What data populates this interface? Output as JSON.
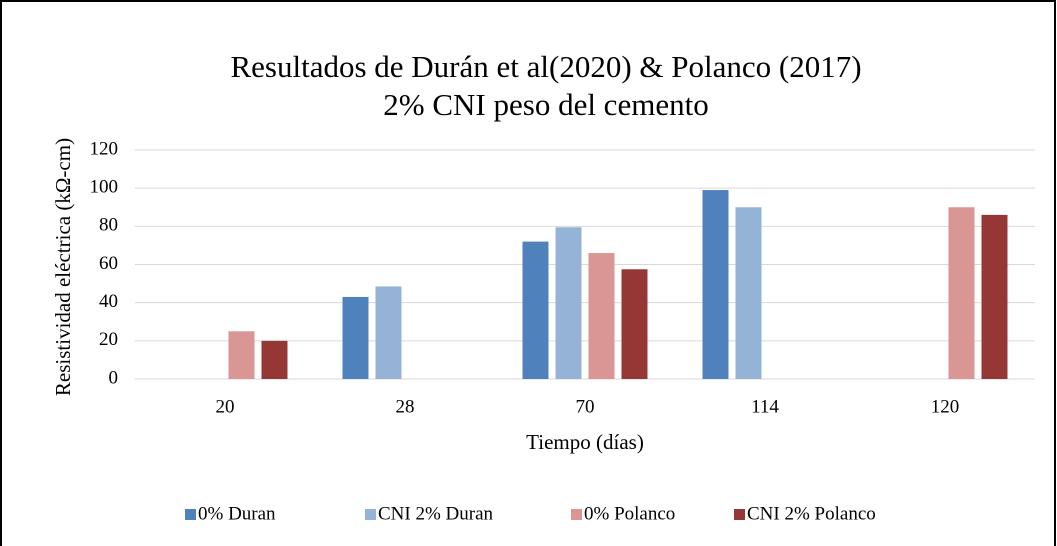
{
  "chart_data": {
    "type": "bar",
    "title": "Resultados de Durán et al(2020) & Polanco (2017)",
    "subtitle": "2% CNI peso del cemento",
    "x_label": "Tiempo (días)",
    "y_label": "Resistividad eléctrica  (kΩ-cm)",
    "categories": [
      "20",
      "28",
      "70",
      "114",
      "120"
    ],
    "series": [
      {
        "name": "0% Duran",
        "color": "#4f81bd",
        "values": [
          null,
          43,
          72,
          99,
          null
        ]
      },
      {
        "name": "CNI 2% Duran",
        "color": "#95b3d7",
        "values": [
          null,
          48.5,
          79.5,
          90,
          null
        ]
      },
      {
        "name": "0% Polanco",
        "color": "#d99694",
        "values": [
          25,
          null,
          66,
          null,
          90
        ]
      },
      {
        "name": "CNI 2% Polanco",
        "color": "#953735",
        "values": [
          20,
          null,
          57.5,
          null,
          86
        ]
      }
    ],
    "ylim": [
      0,
      120
    ],
    "yticks": [
      0,
      20,
      40,
      60,
      80,
      100,
      120
    ],
    "grid": true,
    "legend": "bottom"
  }
}
